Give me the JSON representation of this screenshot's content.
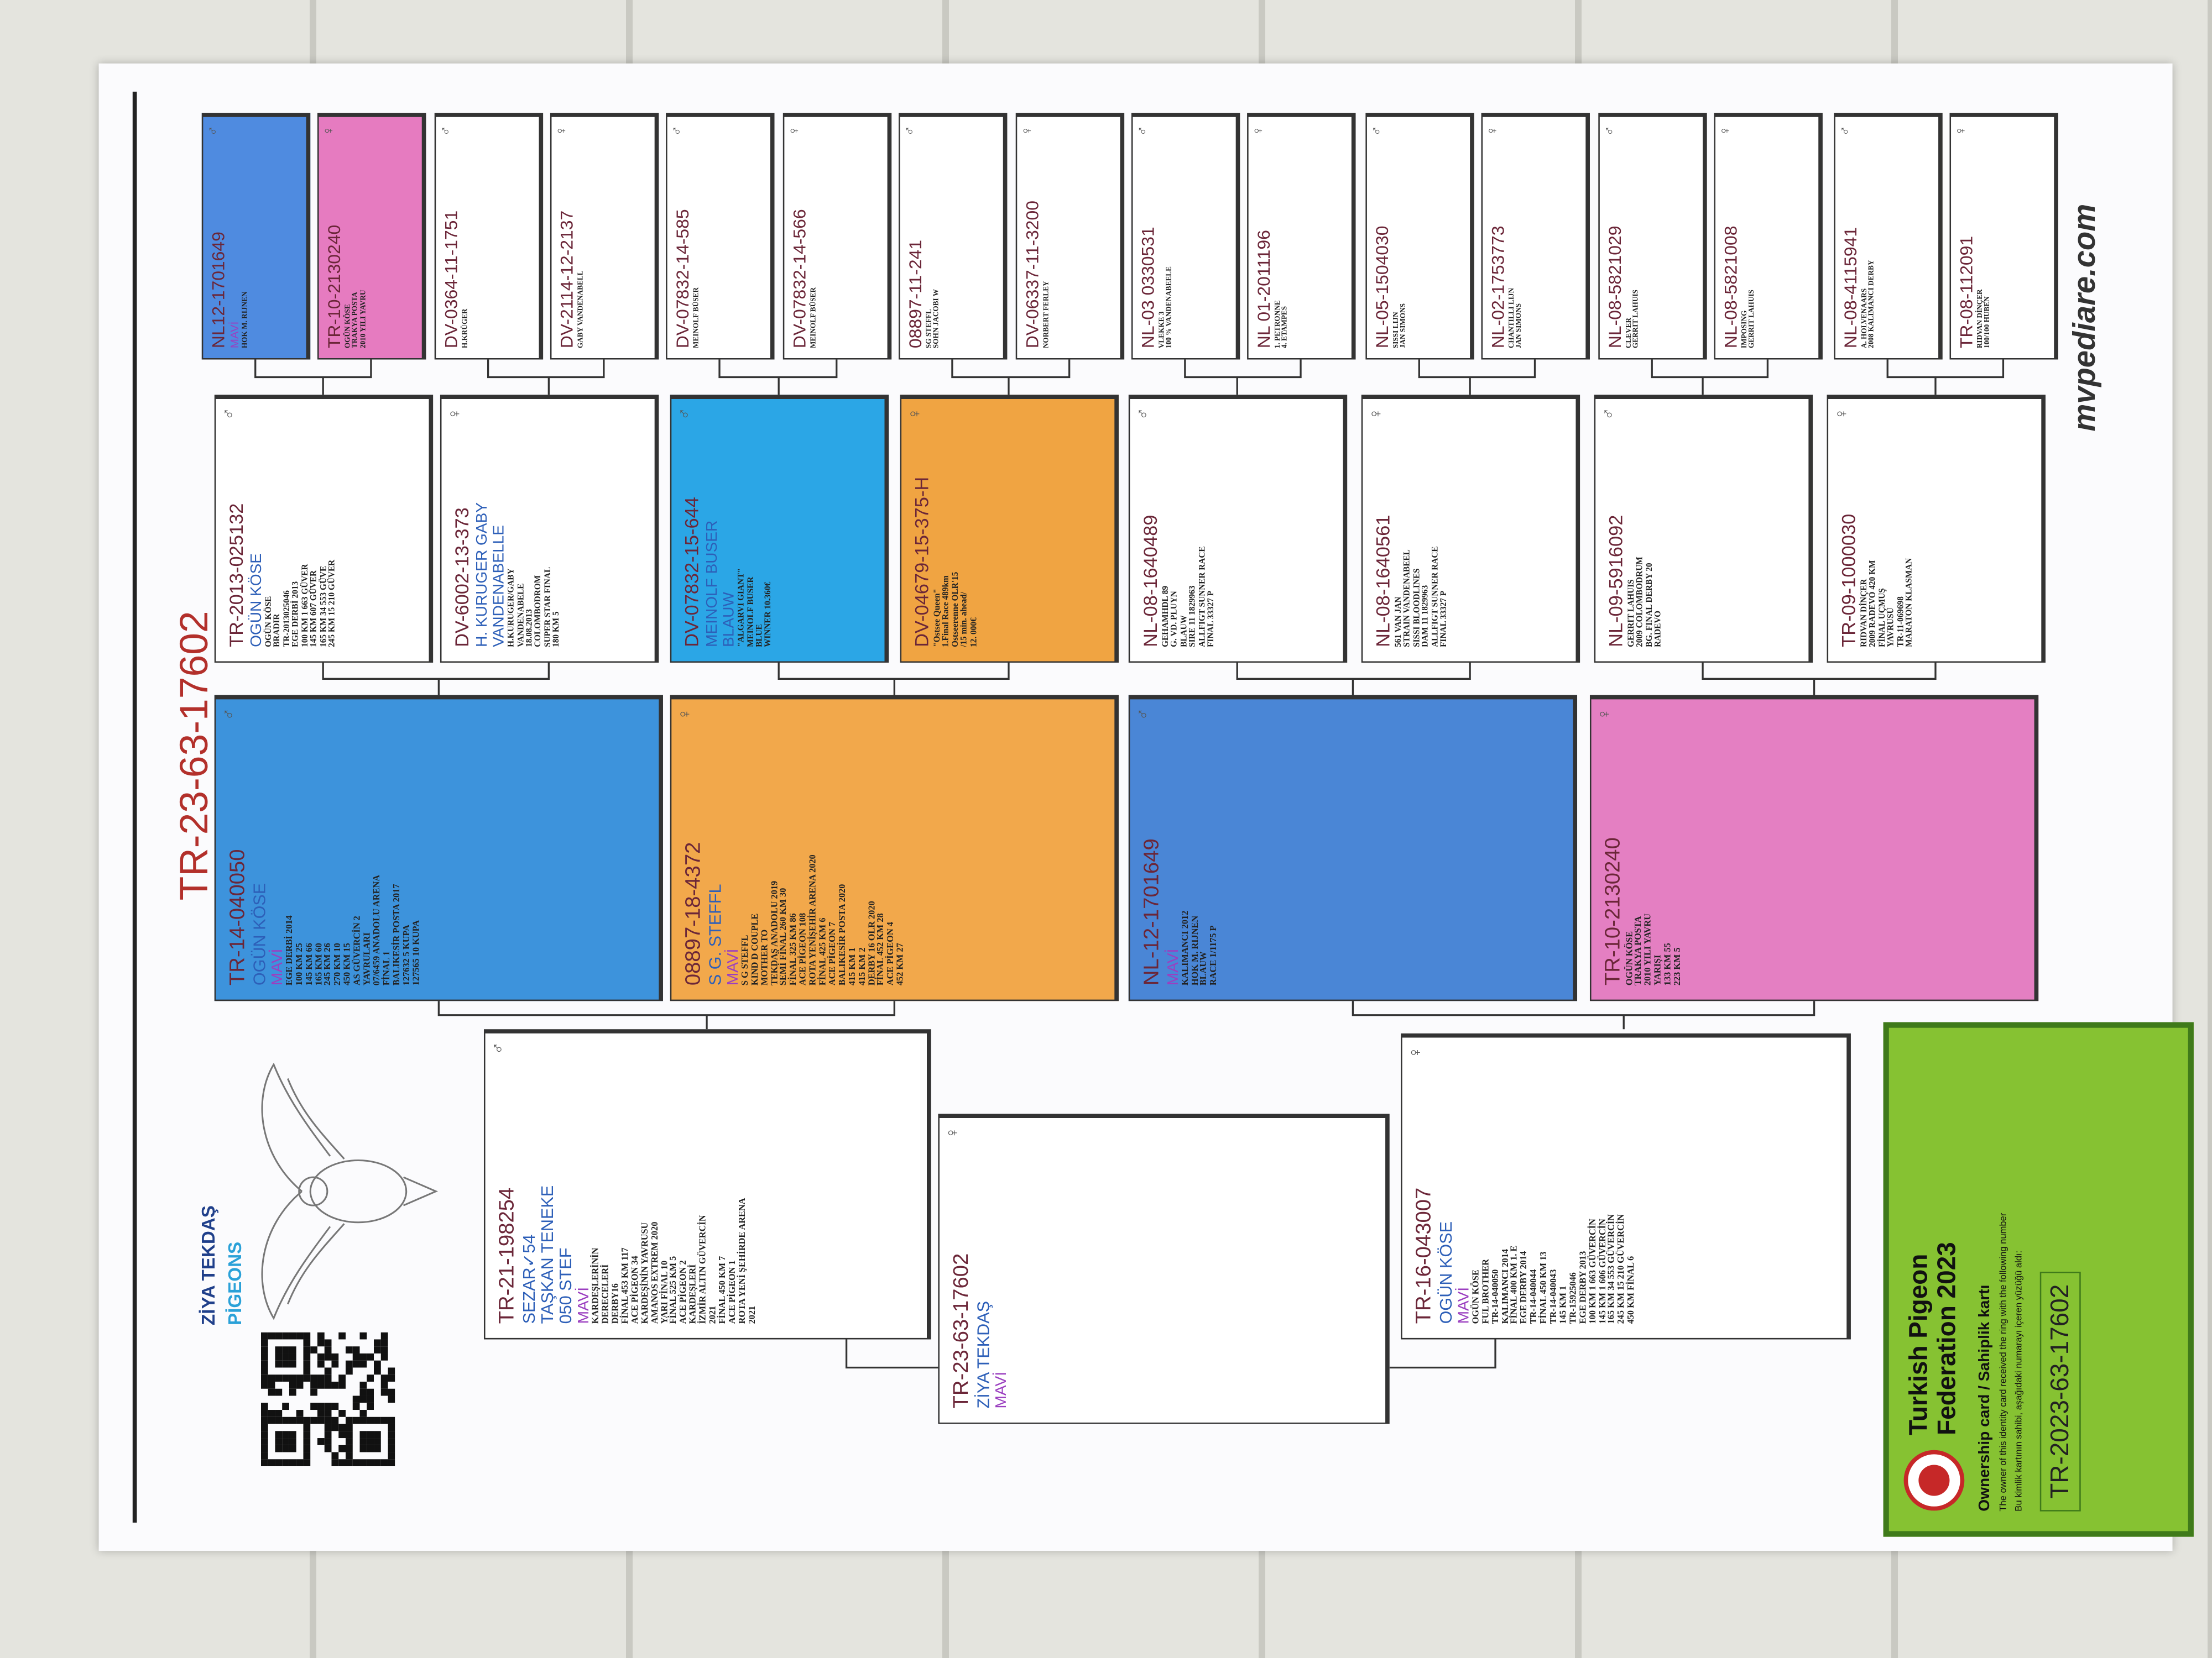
{
  "header": {
    "title": "TR-23-63-17602",
    "logo_line1": "ZİYA TEKDAŞ",
    "logo_line2": "PİGEONS"
  },
  "subject": {
    "ring": "TR-23-63-17602",
    "sex": "♀",
    "names": [
      "ZİYA TEKDAŞ"
    ],
    "color_name": "MAVİ",
    "notes": []
  },
  "gen1": [
    {
      "ring": "TR-21-198254",
      "sex": "♂",
      "names": [
        "SEZAR✓54",
        "TAŞKAN TENEKE",
        "050 STEF"
      ],
      "color_name": "MAVİ",
      "notes": [
        "KARDEŞLERİNİN",
        "DERECELERİ",
        "DERBY16",
        "FİNAL 453 KM 117",
        "ACE PİGEON 34",
        "KARDEŞİNİN YAVRUSU",
        "AMANOS EXTREM 2020",
        "YARI FİNAL 10",
        "FİNAL 525 KM 5",
        "ACE PİGEON 2",
        "KARDEŞLERİ",
        "İZMİR ALTIN GÜVERCİN",
        "2021",
        "FİNAL 450 KM 7",
        "ACE PİGEON 1",
        "ROTA YENİ ŞEHİRDE ARENA",
        "2021"
      ]
    },
    {
      "ring": "TR-16-043007",
      "sex": "♀",
      "names": [
        "OGÜN KÖSE"
      ],
      "color_name": "MAVİ",
      "notes": [
        "OGÜN KÖSE",
        "FUL BROTHER",
        "TR-14-040050",
        "KALIMANCI 2014",
        "FİNAL 400 KM 1. E",
        "EGE DERBY 2014",
        "TR-14-040044",
        "FİNAL 450 KM 13",
        "TR-14-040043",
        "145 KM 1",
        "TR-15925046",
        "EGE DERBY 2013",
        "100 KM 1 663 GÜVERCİN",
        "145 KM 1 606 GÜVERCİN",
        "165 KM 34 553 GÜVERCİN",
        "245 KM 15 210 GÜVERCİN",
        "450 KM FİNAL 6"
      ]
    }
  ],
  "gen2": [
    {
      "ring": "TR-14-040050",
      "sex": "♂",
      "fill": "#3d93dc",
      "names": [
        "OGÜN KÖSE"
      ],
      "color_name": "MAVİ",
      "notes": [
        "EGE DERBİ 2014",
        "100 KM 25",
        "145 KM 66",
        "165 KM 60",
        "245 KM 26",
        "270 KM 10",
        "450 KM 15",
        "AS GÜVERCİN 2",
        "YAVRULARI",
        "07/6459 ANADOLU ARENA",
        "FİNAL 1",
        "BALIKESİR POSTA 2017",
        "127632 5 KUPA",
        "127565 10 KUPA"
      ]
    },
    {
      "ring": "08897-18-4372",
      "sex": "♀",
      "fill": "#f2a84b",
      "names": [
        "S G. STEFFL"
      ],
      "color_name": "MAVİ",
      "notes": [
        "S G STEFFL",
        "KIND D COUPLE",
        "MOTHER TO",
        "TEKDAŞ ANADOLU 2019",
        "SEMİ FİNAL 260 KM 30",
        "FİNAL 325 KM 86",
        "ACE PİGEON 108",
        "ROTA YENİŞEHİR ARENA 2020",
        "FİNAL 425 KM 6",
        "ACE PİGEON 7",
        "BALIKESİR POSTA 2020",
        "415 KM 1",
        "415 KM 2",
        "DERBY 16 OLR 2020",
        "FİNAL 452 KM 28",
        "ACE PİGEON 4",
        "452 KM 27"
      ]
    },
    {
      "ring": "NL-12-1701649",
      "sex": "♂",
      "fill": "#4a86d6",
      "names": [],
      "color_name": "MAVİ",
      "notes": [
        "KALIMANCI 2012",
        "HOK M. RIJNEN",
        "BLAUW",
        "RACE 1/1175 P"
      ]
    },
    {
      "ring": "TR-10-2130240",
      "sex": "♀",
      "fill": "#e47fc2",
      "names": [],
      "color_name": "",
      "notes": [
        "OGÜN KÖSE",
        "TRAKYA POSTA",
        "2010 YILI YAVRU",
        "YARIŞI",
        "133 KM 55",
        "223 KM 5"
      ]
    }
  ],
  "gen3": [
    {
      "ring": "TR-2013-025132",
      "sex": "♂",
      "names": [
        "OGÜN KÖSE"
      ],
      "notes": [
        "OGÜN KÖSE",
        "BRADIR",
        "TR-2013025046",
        "EGE DERBİ 2013",
        "100 KM 1 663 GÜVER",
        "145 KM 607 GÜVER",
        "165 KM 34 553 GÜVE",
        "245 KM 15 210 GÜVER"
      ]
    },
    {
      "ring": "DV-6002-13-373",
      "sex": "♀",
      "names": [
        "H. KURUGER GABY VANDENABELLE"
      ],
      "notes": [
        "H.KURUGER/GABY",
        "VANDENABELE",
        "18.08.2013",
        "COLOMBODROM",
        "SUPER STAR FINAL",
        "180 KM 5"
      ]
    },
    {
      "ring": "DV-07832-15-644",
      "sex": "♂",
      "fill": "#2ba6e6",
      "names": [
        "MEINOLF BUSER",
        "BLAUW"
      ],
      "notes": [
        "\"ALGARVI GIANT\"",
        "MEINOLF BUSER",
        "BLUE",
        "WINNER 10.360€"
      ]
    },
    {
      "ring": "DV-04679-15-375-H",
      "sex": "♀",
      "fill": "#f0a442",
      "names": [],
      "notes": [
        "\"Ostsee Queen\"",
        "1.Final Race 489km",
        "Ostseerenne OLR'15",
        "/15 min. ahead/",
        "12. 000€"
      ]
    },
    {
      "ring": "NL-08-1640489",
      "sex": "♂",
      "names": [],
      "notes": [
        "GEHAMHDL 89",
        "G. VD. PLUYN",
        "BLAUW",
        "SIRE 11 1829963",
        "ALLFIGT SUNNER RACE",
        "FINAL 33327 P"
      ]
    },
    {
      "ring": "NL-08-1640561",
      "sex": "♀",
      "names": [],
      "notes": [
        "561 VAN JAN",
        "STRAIN VANDENABEEL",
        "SISSI BLOODLINES",
        "DAM 11 1829963",
        "ALLFIGT SUNNER RACE",
        "FINAL 33327 P"
      ]
    },
    {
      "ring": "NL-09-5916092",
      "sex": "♂",
      "names": [],
      "notes": [
        "GERRIT LAHUIS",
        "2009 COLOMBODRUM",
        "BG. FINAL DERBY 20",
        "RADEVO"
      ]
    },
    {
      "ring": "TR-09-1000030",
      "sex": "♀",
      "names": [],
      "notes": [
        "RIDVAN DİNÇER",
        "2009 RADEVO 420 KM",
        "FİNAL UÇMUŞ",
        "YAVRUSU",
        "TR-11-069698",
        "MARATON KLASMAN"
      ]
    }
  ],
  "gen4": [
    {
      "ring": "NL12-1701649",
      "sex": "♂",
      "fill": "#4f8be0",
      "color_name": "MAVİ",
      "notes": [
        "HOK M. RIJNEN"
      ]
    },
    {
      "ring": "TR-10-2130240",
      "sex": "♀",
      "fill": "#e67bc0",
      "notes": [
        "OGÜN KÖSE",
        "TRAKYA POSTA",
        "2010 YILI YAVRU"
      ]
    },
    {
      "ring": "DV-0364-11-1751",
      "sex": "♂",
      "notes": [
        "H.KRÜGER"
      ]
    },
    {
      "ring": "DV-2114-12-2137",
      "sex": "♀",
      "notes": [
        "GABY VANDENABELL"
      ]
    },
    {
      "ring": "DV-07832-14-585",
      "sex": "♂",
      "notes": [
        "MEINOLF BÜSER"
      ]
    },
    {
      "ring": "DV-07832-14-566",
      "sex": "♀",
      "notes": [
        "MEINOLF BÜSER"
      ]
    },
    {
      "ring": "08897-11-241",
      "sex": "♂",
      "notes": [
        "SG STEFFL",
        "SOHN JACOBI W"
      ]
    },
    {
      "ring": "DV-06337-11-3200",
      "sex": "♀",
      "notes": [
        "NORBERT FERLEY"
      ]
    },
    {
      "ring": "NL-03 0330531",
      "sex": "♂",
      "notes": [
        "VLEKKE 3",
        "100 % VANDENABEELE"
      ]
    },
    {
      "ring": "NL 01-2011196",
      "sex": "♀",
      "notes": [
        "1. PETRONNE",
        "4. ETAMPES"
      ]
    },
    {
      "ring": "NL-05-1504030",
      "sex": "♂",
      "notes": [
        "SISSI LIJN",
        "JAN SIMONS"
      ]
    },
    {
      "ring": "NL-02-1753773",
      "sex": "♀",
      "notes": [
        "CHANTILLI LIJN",
        "JAN SIMONS"
      ]
    },
    {
      "ring": "NL-08-5821029",
      "sex": "♂",
      "notes": [
        "CLEVER",
        "GERRIT LAHUIS"
      ]
    },
    {
      "ring": "NL-08-5821008",
      "sex": "♀",
      "notes": [
        "IMPOSING",
        "GERRIT LAHUIS"
      ]
    },
    {
      "ring": "NL-08-4115941",
      "sex": "♂",
      "notes": [
        "A. HOLVENAARS",
        "2008 KALIMANCI DERBY"
      ]
    },
    {
      "ring": "TR-08-112091",
      "sex": "♀",
      "notes": [
        "RIDVAN DİNÇER",
        "100/100 HUBEN"
      ]
    }
  ],
  "footer": "mvpediare.com",
  "card": {
    "title1": "Turkish Pigeon",
    "title2": "Federation 2023",
    "subtitle": "Ownership card / Sahiplik kartı",
    "note_en": "The owner of this identity card received the ring with the following number",
    "note_tr": "Bu kimlik kartının sahibi, aşağıdaki numarayı içeren yüzüğü aldı:",
    "ring": "TR-2023-63-17602"
  }
}
